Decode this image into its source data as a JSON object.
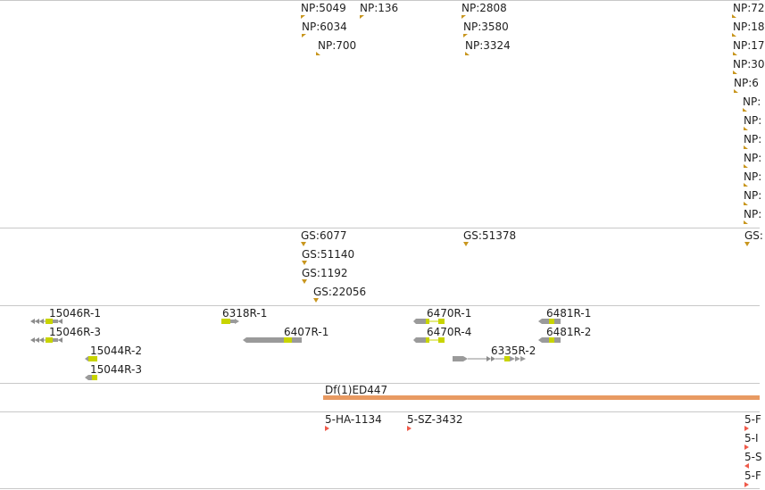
{
  "np_track": {
    "labels": [
      "NP:5049",
      "NP:136",
      "NP:2808",
      "NP:6034",
      "NP:3580",
      "NP:700",
      "NP:3324",
      "NP:72",
      "NP:18",
      "NP:17",
      "NP:30",
      "NP:6"
    ],
    "colors": {
      "marker": "#c8961e"
    }
  },
  "gs_track": {
    "labels": [
      "GS:6077",
      "GS:51378",
      "GS:51140",
      "GS:1192",
      "GS:22056",
      "GS:"
    ]
  },
  "gene_track": {
    "genes": [
      "15046R-1",
      "15046R-3",
      "15044R-2",
      "15044R-3",
      "6318R-1",
      "6407R-1",
      "6470R-1",
      "6470R-4",
      "6335R-2",
      "6481R-1",
      "6481R-2"
    ],
    "colors": {
      "intron": "#8c8c8c",
      "exon": "#9a9a9a",
      "cds": "#c8d400"
    }
  },
  "deficiency_track": {
    "label": "Df(1)ED447",
    "color": "#e89a62"
  },
  "insertion_track": {
    "labels": [
      "5-HA-1134",
      "5-SZ-3432",
      "5-F",
      "5-I",
      "5-S",
      "5-F"
    ],
    "colors": {
      "marker": "#ef5a4a"
    }
  }
}
